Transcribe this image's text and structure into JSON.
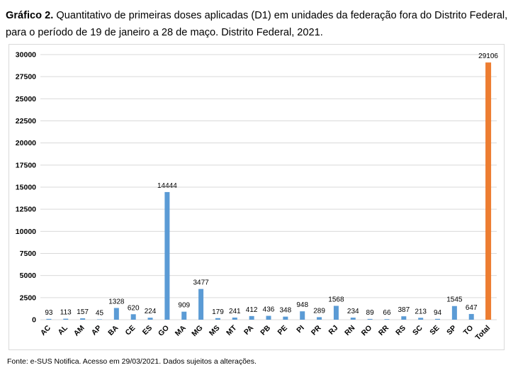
{
  "caption": {
    "lead": "Gráfico 2.",
    "text": " Quantitativo de primeiras doses aplicadas (D1) em unidades da federação fora do Distrito Federal, para o período de 19 de janeiro a 28 de maço. Distrito Federal, 2021."
  },
  "source": "Fonte: e-SUS Notifica. Acesso em 29/03/2021. Dados sujeitos a alterações.",
  "colors": {
    "bar": "#5b9bd5",
    "total": "#ed7d31",
    "grid": "#d9d9d9"
  },
  "chart_data": {
    "type": "bar",
    "title": "",
    "xlabel": "",
    "ylabel": "",
    "ylim": [
      0,
      30000
    ],
    "yticks": [
      0,
      2500,
      5000,
      7500,
      10000,
      12500,
      15000,
      17500,
      20000,
      22500,
      25000,
      27500,
      30000
    ],
    "grid": true,
    "categories": [
      "AC",
      "AL",
      "AM",
      "AP",
      "BA",
      "CE",
      "ES",
      "GO",
      "MA",
      "MG",
      "MS",
      "MT",
      "PA",
      "PB",
      "PE",
      "PI",
      "PR",
      "RJ",
      "RN",
      "RO",
      "RR",
      "RS",
      "SC",
      "SE",
      "SP",
      "TO",
      "Total"
    ],
    "values": [
      93,
      113,
      157,
      45,
      1328,
      620,
      224,
      14444,
      909,
      3477,
      179,
      241,
      412,
      436,
      348,
      948,
      289,
      1568,
      234,
      89,
      66,
      387,
      213,
      94,
      1545,
      647,
      29106
    ],
    "highlight": "Total"
  }
}
